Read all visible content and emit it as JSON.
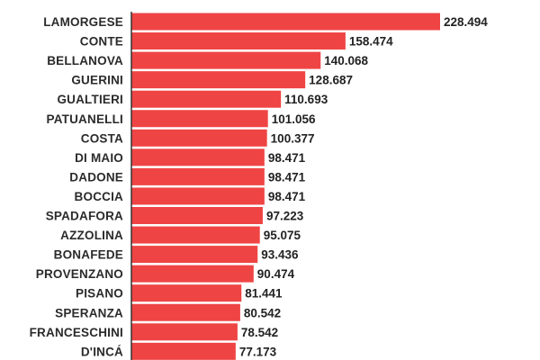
{
  "chart_data": {
    "type": "bar",
    "orientation": "horizontal",
    "title": "",
    "xlabel": "",
    "ylabel": "",
    "grid": false,
    "legend": "none",
    "bar_color": "#ef4444",
    "axis_color": "#333333",
    "xlim": [
      0,
      250
    ],
    "categories": [
      "LAMORGESE",
      "CONTE",
      "BELLANOVA",
      "GUERINI",
      "GUALTIERI",
      "PATUANELLI",
      "COSTA",
      "DI MAIO",
      "DADONE",
      "BOCCIA",
      "SPADAFORA",
      "AZZOLINA",
      "BONAFEDE",
      "PROVENZANO",
      "PISANO",
      "SPERANZA",
      "FRANCESCHINI",
      "D'INCÁ"
    ],
    "values": [
      228.494,
      158.474,
      140.068,
      128.687,
      110.693,
      101.056,
      100.377,
      98.471,
      98.471,
      98.471,
      97.223,
      95.075,
      93.436,
      90.474,
      81.441,
      80.542,
      78.542,
      77.173
    ],
    "value_labels": [
      "228.494",
      "158.474",
      "140.068",
      "128.687",
      "110.693",
      "101.056",
      "100.377",
      "98.471",
      "98.471",
      "98.471",
      "97.223",
      "95.075",
      "93.436",
      "90.474",
      "81.441",
      "80.542",
      "78.542",
      "77.173"
    ]
  }
}
